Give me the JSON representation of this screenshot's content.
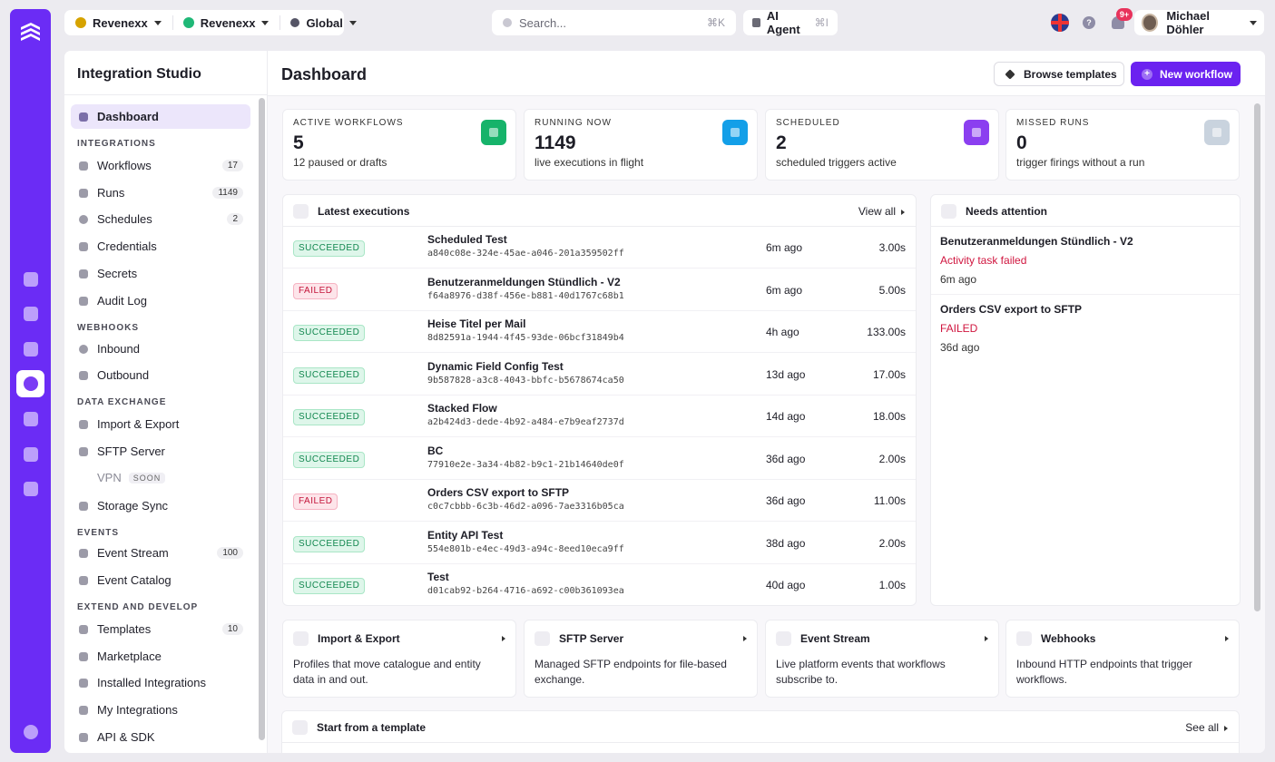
{
  "topbar": {
    "workspaces": [
      {
        "label": "Revenexx",
        "color": "#d6a300"
      },
      {
        "label": "Revenexx",
        "color": "#1fb877"
      },
      {
        "label": "Global",
        "color": "#556"
      }
    ],
    "search": {
      "placeholder": "Search...",
      "shortcut": "⌘K"
    },
    "ai_agent": {
      "label": "AI Agent",
      "shortcut": "⌘I"
    },
    "notifications_badge": "9+",
    "help_label": "?",
    "user_name": "Michael Döhler"
  },
  "sidebar": {
    "title": "Integration Studio",
    "dashboard": "Dashboard",
    "sections": {
      "integrations": "INTEGRATIONS",
      "webhooks": "WEBHOOKS",
      "data_exchange": "DATA EXCHANGE",
      "events": "EVENTS",
      "extend": "EXTEND AND DEVELOP"
    },
    "items": {
      "workflows": {
        "label": "Workflows",
        "count": "17"
      },
      "runs": {
        "label": "Runs",
        "count": "1149"
      },
      "schedules": {
        "label": "Schedules",
        "count": "2"
      },
      "credentials": {
        "label": "Credentials"
      },
      "secrets": {
        "label": "Secrets"
      },
      "audit_log": {
        "label": "Audit Log"
      },
      "inbound": {
        "label": "Inbound"
      },
      "outbound": {
        "label": "Outbound"
      },
      "import_export": {
        "label": "Import & Export"
      },
      "sftp_server": {
        "label": "SFTP Server"
      },
      "vpn": {
        "label": "VPN",
        "badge": "SOON"
      },
      "storage_sync": {
        "label": "Storage Sync"
      },
      "event_stream": {
        "label": "Event Stream",
        "count": "100"
      },
      "event_catalog": {
        "label": "Event Catalog"
      },
      "templates": {
        "label": "Templates",
        "count": "10"
      },
      "marketplace": {
        "label": "Marketplace"
      },
      "installed_integrations": {
        "label": "Installed Integrations"
      },
      "my_integrations": {
        "label": "My Integrations"
      },
      "api_sdk": {
        "label": "API & SDK"
      }
    }
  },
  "page": {
    "title": "Dashboard",
    "browse_templates": "Browse templates",
    "new_workflow": "New workflow",
    "new_workflow_icon": "+"
  },
  "stats": [
    {
      "label": "ACTIVE WORKFLOWS",
      "value": "5",
      "sub": "12 paused or drafts",
      "color": "#16b36a"
    },
    {
      "label": "RUNNING NOW",
      "value": "1149",
      "sub": "live executions in flight",
      "color": "#139fe8"
    },
    {
      "label": "SCHEDULED",
      "value": "2",
      "sub": "scheduled triggers active",
      "color": "#8b3ff0"
    },
    {
      "label": "MISSED RUNS",
      "value": "0",
      "sub": "trigger firings without a run",
      "color": "#c9d3de"
    }
  ],
  "executions": {
    "title": "Latest executions",
    "view_all": "View all",
    "rows": [
      {
        "status": "SUCCEEDED",
        "ok": true,
        "name": "Scheduled Test",
        "id": "a840c08e-324e-45ae-a046-201a359502ff",
        "ago": "6m ago",
        "duration": "3.00s"
      },
      {
        "status": "FAILED",
        "ok": false,
        "name": "Benutzeranmeldungen Stündlich - V2",
        "id": "f64a8976-d38f-456e-b881-40d1767c68b1",
        "ago": "6m ago",
        "duration": "5.00s"
      },
      {
        "status": "SUCCEEDED",
        "ok": true,
        "name": "Heise Titel per Mail",
        "id": "8d82591a-1944-4f45-93de-06bcf31849b4",
        "ago": "4h ago",
        "duration": "133.00s"
      },
      {
        "status": "SUCCEEDED",
        "ok": true,
        "name": "Dynamic Field Config Test",
        "id": "9b587828-a3c8-4043-bbfc-b5678674ca50",
        "ago": "13d ago",
        "duration": "17.00s"
      },
      {
        "status": "SUCCEEDED",
        "ok": true,
        "name": "Stacked Flow",
        "id": "a2b424d3-dede-4b92-a484-e7b9eaf2737d",
        "ago": "14d ago",
        "duration": "18.00s"
      },
      {
        "status": "SUCCEEDED",
        "ok": true,
        "name": "BC",
        "id": "77910e2e-3a34-4b82-b9c1-21b14640de0f",
        "ago": "36d ago",
        "duration": "2.00s"
      },
      {
        "status": "FAILED",
        "ok": false,
        "name": "Orders CSV export to SFTP",
        "id": "c0c7cbbb-6c3b-46d2-a096-7ae3316b05ca",
        "ago": "36d ago",
        "duration": "11.00s"
      },
      {
        "status": "SUCCEEDED",
        "ok": true,
        "name": "Entity API Test",
        "id": "554e801b-e4ec-49d3-a94c-8eed10eca9ff",
        "ago": "38d ago",
        "duration": "2.00s"
      },
      {
        "status": "SUCCEEDED",
        "ok": true,
        "name": "Test",
        "id": "d01cab92-b264-4716-a692-c00b361093ea",
        "ago": "40d ago",
        "duration": "1.00s"
      }
    ]
  },
  "attention": {
    "title": "Needs attention",
    "items": [
      {
        "name": "Benutzeranmeldungen Stündlich - V2",
        "message": "Activity task failed",
        "ago": "6m ago"
      },
      {
        "name": "Orders CSV export to SFTP",
        "message": "FAILED",
        "ago": "36d ago"
      }
    ]
  },
  "quick_links": [
    {
      "title": "Import & Export",
      "desc": "Profiles that move catalogue and entity data in and out."
    },
    {
      "title": "SFTP Server",
      "desc": "Managed SFTP endpoints for file-based exchange."
    },
    {
      "title": "Event Stream",
      "desc": "Live platform events that workflows subscribe to."
    },
    {
      "title": "Webhooks",
      "desc": "Inbound HTTP endpoints that trigger workflows."
    }
  ],
  "templates_section": {
    "title": "Start from a template",
    "see_all": "See all"
  }
}
